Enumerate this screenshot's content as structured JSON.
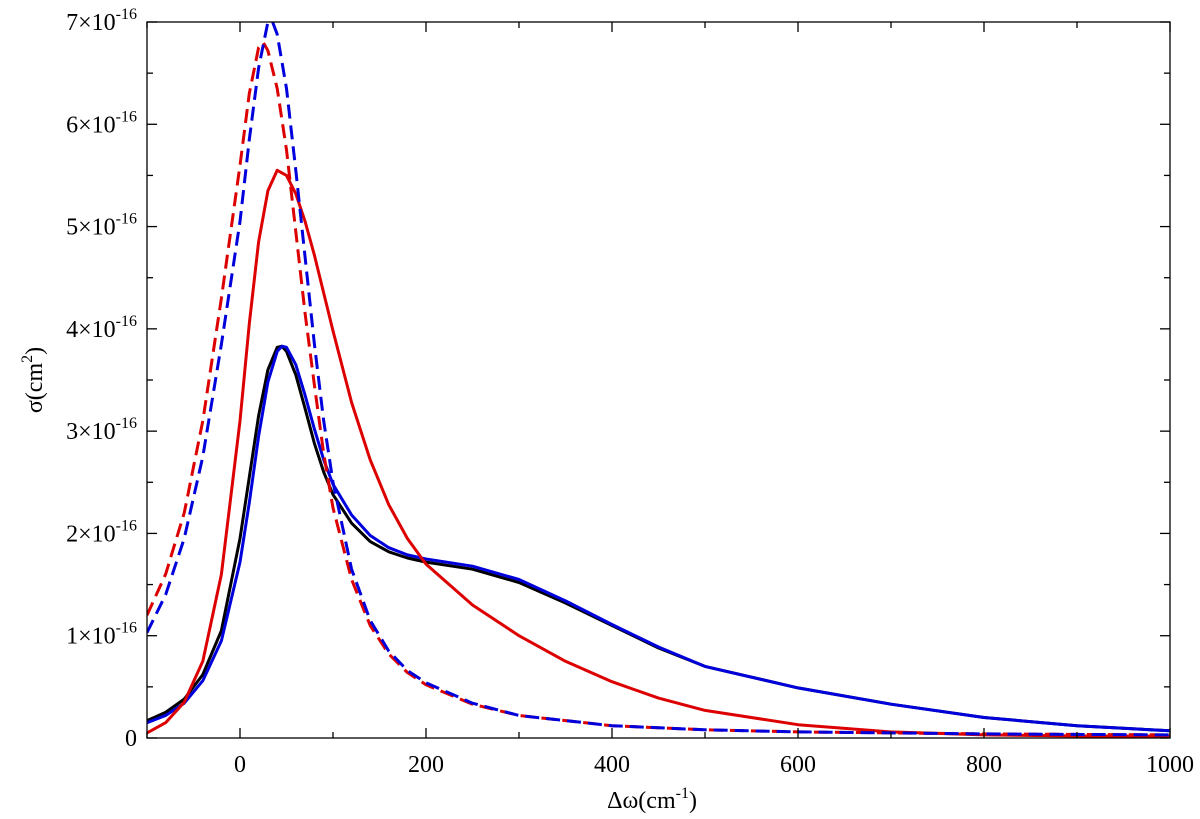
{
  "chart_data": {
    "type": "line",
    "title": "",
    "xlabel": "Δω(cm⁻¹)",
    "xlabel_base": "Δω(cm",
    "xlabel_sup": "-1",
    "xlabel_close": ")",
    "ylabel": "σ(cm²)",
    "ylabel_base": "σ(cm",
    "ylabel_sup": "2",
    "ylabel_close": ")",
    "xlim": [
      -100,
      1000
    ],
    "ylim": [
      0,
      7
    ],
    "y_unit_note": "y values in units of 1x10^-16 cm^2",
    "grid": false,
    "x_ticks": [
      {
        "value": 0,
        "label": "0"
      },
      {
        "value": 200,
        "label": "200"
      },
      {
        "value": 400,
        "label": "400"
      },
      {
        "value": 600,
        "label": "600"
      },
      {
        "value": 800,
        "label": "800"
      },
      {
        "value": 1000,
        "label": "1000"
      }
    ],
    "y_ticks": [
      {
        "value": 0,
        "label": "0",
        "mantissa": "",
        "base": "",
        "exp": ""
      },
      {
        "value": 1,
        "label": "1x10^-16",
        "mantissa": "1",
        "base": "×10",
        "exp": "-16"
      },
      {
        "value": 2,
        "label": "2x10^-16",
        "mantissa": "2",
        "base": "×10",
        "exp": "-16"
      },
      {
        "value": 3,
        "label": "3x10^-16",
        "mantissa": "3",
        "base": "×10",
        "exp": "-16"
      },
      {
        "value": 4,
        "label": "4x10^-16",
        "mantissa": "4",
        "base": "×10",
        "exp": "-16"
      },
      {
        "value": 5,
        "label": "5x10^-16",
        "mantissa": "5",
        "base": "×10",
        "exp": "-16"
      },
      {
        "value": 6,
        "label": "6x10^-16",
        "mantissa": "6",
        "base": "×10",
        "exp": "-16"
      },
      {
        "value": 7,
        "label": "7x10^-16",
        "mantissa": "7",
        "base": "×10",
        "exp": "-16"
      }
    ],
    "x_minor_step": 100,
    "y_minor_step": 0.5,
    "series": [
      {
        "name": "black-solid",
        "color": "#000000",
        "dash": "solid",
        "x": [
          -100,
          -80,
          -60,
          -40,
          -20,
          0,
          10,
          20,
          30,
          40,
          45,
          50,
          60,
          70,
          80,
          90,
          100,
          120,
          140,
          160,
          180,
          200,
          250,
          300,
          350,
          400,
          450,
          500,
          600,
          700,
          800,
          900,
          1000
        ],
        "y": [
          0.17,
          0.25,
          0.38,
          0.62,
          1.05,
          1.95,
          2.55,
          3.15,
          3.6,
          3.82,
          3.83,
          3.78,
          3.55,
          3.22,
          2.88,
          2.6,
          2.38,
          2.1,
          1.92,
          1.82,
          1.76,
          1.72,
          1.65,
          1.52,
          1.32,
          1.1,
          0.88,
          0.7,
          0.49,
          0.33,
          0.2,
          0.12,
          0.07
        ]
      },
      {
        "name": "blue-solid",
        "color": "#0000dd",
        "dash": "solid",
        "x": [
          -100,
          -80,
          -60,
          -40,
          -20,
          0,
          10,
          20,
          30,
          40,
          45,
          50,
          60,
          70,
          80,
          90,
          100,
          120,
          140,
          160,
          180,
          200,
          250,
          300,
          350,
          400,
          450,
          500,
          600,
          700,
          800,
          900,
          1000
        ],
        "y": [
          0.15,
          0.22,
          0.34,
          0.56,
          0.95,
          1.72,
          2.3,
          2.95,
          3.48,
          3.78,
          3.83,
          3.82,
          3.65,
          3.35,
          3.02,
          2.72,
          2.48,
          2.18,
          1.98,
          1.86,
          1.79,
          1.75,
          1.68,
          1.55,
          1.34,
          1.11,
          0.89,
          0.7,
          0.49,
          0.33,
          0.2,
          0.12,
          0.07
        ]
      },
      {
        "name": "red-solid",
        "color": "#dd0000",
        "dash": "solid",
        "x": [
          -100,
          -80,
          -60,
          -40,
          -20,
          0,
          10,
          20,
          30,
          40,
          50,
          60,
          70,
          80,
          100,
          120,
          140,
          160,
          180,
          200,
          250,
          300,
          350,
          400,
          450,
          500,
          600,
          700,
          800,
          900,
          1000
        ],
        "y": [
          0.05,
          0.15,
          0.35,
          0.75,
          1.6,
          3.1,
          4.05,
          4.85,
          5.35,
          5.55,
          5.5,
          5.32,
          5.05,
          4.72,
          3.98,
          3.28,
          2.72,
          2.28,
          1.95,
          1.7,
          1.3,
          1.0,
          0.75,
          0.55,
          0.39,
          0.27,
          0.13,
          0.06,
          0.03,
          0.02,
          0.02
        ]
      },
      {
        "name": "red-dashed",
        "color": "#dd0000",
        "dash": "dashed",
        "x": [
          -100,
          -80,
          -60,
          -40,
          -20,
          0,
          10,
          20,
          25,
          30,
          40,
          50,
          60,
          70,
          80,
          90,
          100,
          120,
          140,
          160,
          180,
          200,
          250,
          300,
          400,
          500,
          600,
          800,
          1000
        ],
        "y": [
          1.2,
          1.6,
          2.2,
          3.1,
          4.3,
          5.6,
          6.3,
          6.75,
          6.8,
          6.72,
          6.35,
          5.75,
          4.95,
          4.15,
          3.45,
          2.78,
          2.25,
          1.55,
          1.1,
          0.82,
          0.64,
          0.52,
          0.33,
          0.22,
          0.12,
          0.08,
          0.06,
          0.04,
          0.03
        ]
      },
      {
        "name": "blue-dashed",
        "color": "#0000dd",
        "dash": "dashed",
        "x": [
          -100,
          -80,
          -60,
          -40,
          -20,
          0,
          10,
          20,
          30,
          35,
          40,
          50,
          60,
          70,
          80,
          90,
          100,
          120,
          140,
          160,
          180,
          200,
          250,
          300,
          400,
          500,
          600,
          800,
          1000
        ],
        "y": [
          1.03,
          1.4,
          1.95,
          2.75,
          3.85,
          5.05,
          5.85,
          6.55,
          7.0,
          7.0,
          6.88,
          6.35,
          5.55,
          4.7,
          3.85,
          3.1,
          2.5,
          1.65,
          1.15,
          0.85,
          0.66,
          0.54,
          0.34,
          0.22,
          0.12,
          0.08,
          0.06,
          0.04,
          0.03
        ]
      }
    ]
  }
}
